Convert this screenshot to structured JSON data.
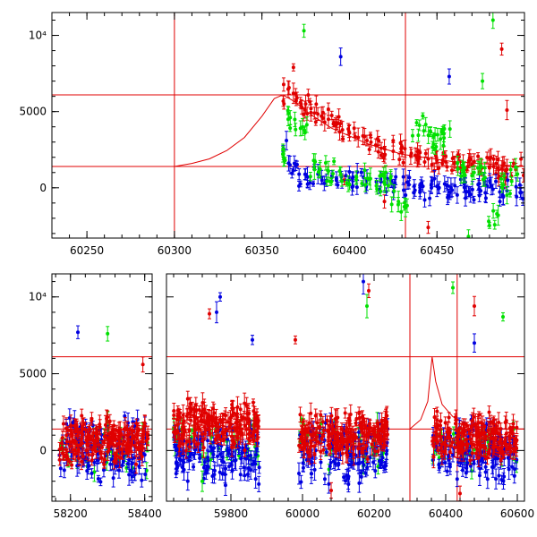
{
  "chart_data": [
    {
      "type": "scatter",
      "panel": "top",
      "title": "",
      "xlabel": "",
      "ylabel": "",
      "xlim": [
        60230,
        60500
      ],
      "ylim": [
        -3300,
        11500
      ],
      "xticks": [
        60250,
        60300,
        60350,
        60400,
        60450
      ],
      "xtick_labels": [
        "60250",
        "60300",
        "60350",
        "60400",
        "60450"
      ],
      "yticks": [
        0,
        5000,
        10000
      ],
      "ytick_labels": [
        "0",
        "5000",
        "10⁴"
      ],
      "hlines": [
        6100,
        1400
      ],
      "vlines": [
        60300,
        60432
      ],
      "model_curve": {
        "color": "#e00000",
        "points": [
          [
            60300,
            1400
          ],
          [
            60310,
            1600
          ],
          [
            60320,
            1900
          ],
          [
            60330,
            2450
          ],
          [
            60340,
            3300
          ],
          [
            60350,
            4700
          ],
          [
            60357,
            5850
          ],
          [
            60362,
            6100
          ],
          [
            60368,
            5700
          ],
          [
            60378,
            4800
          ],
          [
            60390,
            3900
          ],
          [
            60410,
            2900
          ],
          [
            60430,
            2200
          ],
          [
            60460,
            1700
          ],
          [
            60500,
            1400
          ]
        ]
      },
      "series": [
        {
          "color": "#e00000",
          "x_range": [
            60362,
            60500
          ],
          "points": [
            [
              60368,
              7900
            ],
            [
              60368,
              6200
            ],
            [
              60370,
              5900
            ],
            [
              60372,
              5600
            ],
            [
              60375,
              5500
            ],
            [
              60378,
              5200
            ],
            [
              60380,
              4900
            ],
            [
              60384,
              4700
            ],
            [
              60388,
              4500
            ],
            [
              60392,
              4100
            ],
            [
              60396,
              3800
            ],
            [
              60400,
              3600
            ],
            [
              60405,
              3300
            ],
            [
              60410,
              3100
            ],
            [
              60415,
              2800
            ],
            [
              60420,
              2600
            ],
            [
              60425,
              2400
            ],
            [
              60430,
              2300
            ],
            [
              60435,
              2100
            ],
            [
              60440,
              2000
            ],
            [
              60445,
              1900
            ],
            [
              60450,
              1800
            ],
            [
              60455,
              1700
            ],
            [
              60460,
              1600
            ],
            [
              60465,
              1500
            ],
            [
              60470,
              1500
            ],
            [
              60475,
              1400
            ],
            [
              60480,
              1300
            ],
            [
              60485,
              1300
            ],
            [
              60490,
              1200
            ],
            [
              60495,
              1200
            ],
            [
              60487,
              9100
            ],
            [
              60490,
              5100
            ],
            [
              60445,
              -2600
            ],
            [
              60397,
              500
            ],
            [
              60430,
              2700
            ],
            [
              60420,
              -900
            ]
          ]
        },
        {
          "color": "#0000e0",
          "x_range": [
            60362,
            60500
          ],
          "points": [
            [
              60364,
              3100
            ],
            [
              60366,
              1500
            ],
            [
              60376,
              700
            ],
            [
              60382,
              900
            ],
            [
              60390,
              800
            ],
            [
              60395,
              8600
            ],
            [
              60398,
              800
            ],
            [
              60402,
              700
            ],
            [
              60410,
              500
            ],
            [
              60418,
              400
            ],
            [
              60426,
              300
            ],
            [
              60434,
              200
            ],
            [
              60442,
              100
            ],
            [
              60450,
              100
            ],
            [
              60458,
              0
            ],
            [
              60466,
              0
            ],
            [
              60474,
              -100
            ],
            [
              60482,
              -100
            ],
            [
              60490,
              -200
            ],
            [
              60498,
              -300
            ],
            [
              60457,
              7300
            ],
            [
              60486,
              -900
            ],
            [
              60424,
              400
            ],
            [
              60443,
              -800
            ]
          ]
        },
        {
          "color": "#00e000",
          "x_range": [
            60362,
            60500
          ],
          "points": [
            [
              60374,
              10300
            ],
            [
              60362,
              2200
            ],
            [
              60365,
              4500
            ],
            [
              60372,
              3900
            ],
            [
              60380,
              1200
            ],
            [
              60388,
              1100
            ],
            [
              60395,
              900
            ],
            [
              60404,
              700
            ],
            [
              60412,
              600
            ],
            [
              60420,
              400
            ],
            [
              60428,
              -900
            ],
            [
              60440,
              4100
            ],
            [
              60452,
              3200
            ],
            [
              60465,
              1000
            ],
            [
              60470,
              800
            ],
            [
              60476,
              7000
            ],
            [
              60482,
              11000
            ],
            [
              60485,
              -1800
            ],
            [
              60488,
              200
            ],
            [
              60496,
              900
            ],
            [
              60468,
              -3200
            ],
            [
              60432,
              -1300
            ]
          ]
        }
      ]
    },
    {
      "type": "scatter",
      "panel": "bottom",
      "title": "",
      "xlabel": "",
      "ylabel": "",
      "segments": [
        {
          "xlim": [
            58150,
            58420
          ],
          "xticks": [
            58200,
            58400
          ],
          "xtick_labels": [
            "58200",
            "58400"
          ]
        },
        {
          "xlim": [
            59620,
            60620
          ],
          "xticks": [
            59800,
            60000,
            60200,
            60400,
            60600
          ],
          "xtick_labels": [
            "59800",
            "60000",
            "60200",
            "60400",
            "60600"
          ]
        }
      ],
      "ylim": [
        -3300,
        11500
      ],
      "yticks": [
        0,
        5000,
        10000
      ],
      "ytick_labels": [
        "0",
        "5000",
        "10⁴"
      ],
      "hlines": [
        6100,
        1400
      ],
      "vlines": [
        60300,
        60432
      ],
      "model_curve": {
        "color": "#e00000",
        "points": [
          [
            60300,
            1400
          ],
          [
            60330,
            2000
          ],
          [
            60350,
            3200
          ],
          [
            60362,
            6100
          ],
          [
            60372,
            4500
          ],
          [
            60390,
            3000
          ],
          [
            60420,
            2200
          ],
          [
            60470,
            1600
          ],
          [
            60550,
            1400
          ],
          [
            60620,
            1400
          ]
        ]
      },
      "clusters": [
        {
          "x_range": [
            58170,
            58410
          ],
          "red_level": 600,
          "blue_level": 0,
          "green_level": 200
        },
        {
          "x_range": [
            59640,
            59880
          ],
          "red_level": 1700,
          "blue_level": -300,
          "green_level": 600
        },
        {
          "x_range": [
            59990,
            60240
          ],
          "red_level": 1000,
          "blue_level": -200,
          "green_level": 500
        },
        {
          "x_range": [
            60362,
            60600
          ],
          "red_level": 900,
          "blue_level": 0,
          "green_level": 300
        }
      ],
      "outliers": [
        {
          "color": "#0000e0",
          "x": 58220,
          "y": 7700
        },
        {
          "color": "#00e000",
          "x": 58300,
          "y": 7600
        },
        {
          "color": "#e00000",
          "x": 58395,
          "y": 5600
        },
        {
          "color": "#0000e0",
          "x": 59770,
          "y": 10000
        },
        {
          "color": "#0000e0",
          "x": 59760,
          "y": 9000
        },
        {
          "color": "#e00000",
          "x": 59740,
          "y": 8900
        },
        {
          "color": "#0000e0",
          "x": 59860,
          "y": 7200
        },
        {
          "color": "#e00000",
          "x": 59980,
          "y": 7200
        },
        {
          "color": "#0000e0",
          "x": 60170,
          "y": 11000
        },
        {
          "color": "#e00000",
          "x": 60185,
          "y": 10400
        },
        {
          "color": "#00e000",
          "x": 60180,
          "y": 9400
        },
        {
          "color": "#00e000",
          "x": 60420,
          "y": 10600
        },
        {
          "color": "#e00000",
          "x": 60480,
          "y": 9400
        },
        {
          "color": "#00e000",
          "x": 60560,
          "y": 8700
        },
        {
          "color": "#0000e0",
          "x": 60480,
          "y": 7000
        },
        {
          "color": "#e00000",
          "x": 60440,
          "y": -2800
        },
        {
          "color": "#00e000",
          "x": 59720,
          "y": -2000
        },
        {
          "color": "#e00000",
          "x": 60080,
          "y": -2600
        }
      ]
    }
  ]
}
